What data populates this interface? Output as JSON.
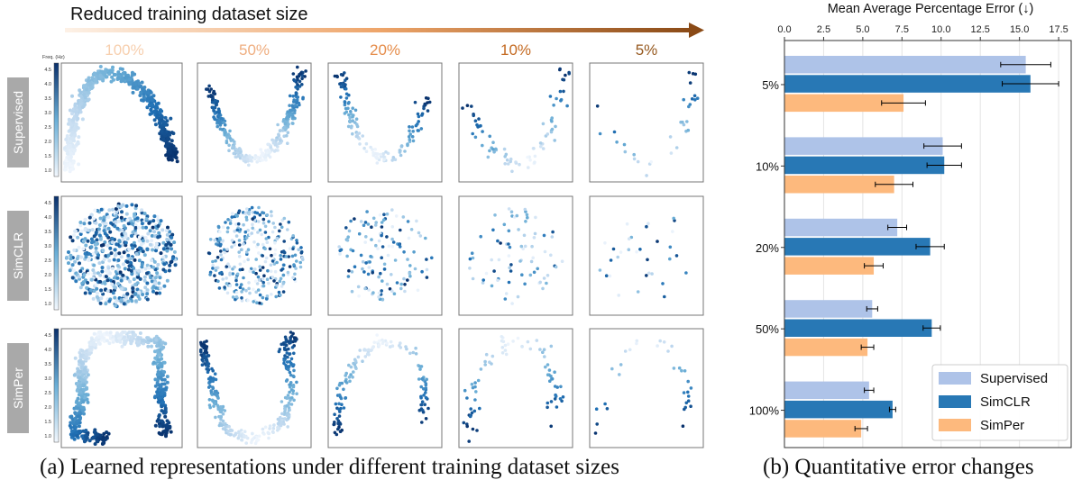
{
  "panel_a": {
    "arrow_label": "Reduced training dataset size",
    "columns": [
      {
        "label": "100%",
        "color": "#f7cfae",
        "n": 620
      },
      {
        "label": "50%",
        "color": "#efae80",
        "n": 320
      },
      {
        "label": "20%",
        "color": "#e58c4a",
        "n": 130
      },
      {
        "label": "10%",
        "color": "#c46a22",
        "n": 75
      },
      {
        "label": "5%",
        "color": "#96591f",
        "n": 32
      }
    ],
    "rows": [
      "Supervised",
      "SimCLR",
      "SimPer"
    ],
    "colorbar": {
      "label": "Freq. (Hz)",
      "ticks_row0": [
        "4.5",
        "4.0",
        "3.5",
        "3.0",
        "2.5",
        "2.0",
        "1.5",
        "1.0"
      ],
      "ticks_row1": [
        "4.5",
        "4.0",
        "3.5",
        "3.0",
        "2.5",
        "2.0",
        "1.5",
        "1.0"
      ],
      "ticks_row2": [
        "4.5",
        "4.0",
        "3.5",
        "3.0",
        "2.5",
        "2.0",
        "1.5",
        "1.0"
      ]
    },
    "caption": "(a) Learned representations under different training dataset sizes"
  },
  "chart_data": {
    "type": "bar",
    "orientation": "horizontal",
    "title": "Mean Average Percentage Error (↓)",
    "categories": [
      "5%",
      "10%",
      "20%",
      "50%",
      "100%"
    ],
    "xlim": [
      0,
      18.3
    ],
    "xticks": [
      "0.0",
      "2.5",
      "5.0",
      "7.5",
      "10.0",
      "12.5",
      "15.0",
      "17.5"
    ],
    "grid": true,
    "legend_position": "bottom-right",
    "series": [
      {
        "name": "Supervised",
        "color": "#aec3e8",
        "values": [
          15.4,
          10.1,
          7.2,
          5.6,
          5.4
        ],
        "errors": [
          1.6,
          1.2,
          0.6,
          0.35,
          0.3
        ]
      },
      {
        "name": "SimCLR",
        "color": "#2878b5",
        "values": [
          15.7,
          10.2,
          9.3,
          9.4,
          6.9
        ],
        "errors": [
          1.8,
          1.1,
          0.9,
          0.55,
          0.2
        ]
      },
      {
        "name": "SimPer",
        "color": "#fdb97d",
        "values": [
          7.6,
          7.0,
          5.7,
          5.3,
          4.9
        ],
        "errors": [
          1.4,
          1.2,
          0.6,
          0.4,
          0.4
        ]
      }
    ],
    "caption": "(b) Quantitative error changes"
  }
}
